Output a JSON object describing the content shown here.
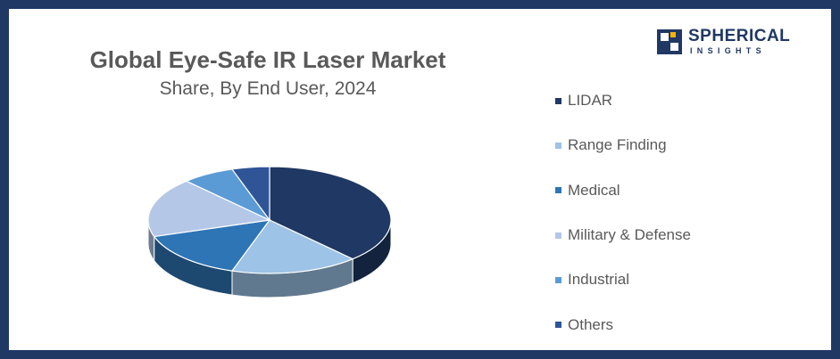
{
  "brand": {
    "name": "SPHERICAL",
    "tagline": "INSIGHTS",
    "colors": {
      "navy": "#1f3864",
      "accent": "#f6b400"
    }
  },
  "chart_data": {
    "type": "pie",
    "title": "Global Eye-Safe IR Laser Market",
    "subtitle": "Share, By End User, 2024",
    "legend_position": "right",
    "series": [
      {
        "name": "LIDAR",
        "value": 38,
        "color": "#1f3864"
      },
      {
        "name": "Range Finding",
        "value": 17,
        "color": "#9dc3e6"
      },
      {
        "name": "Medical",
        "value": 15,
        "color": "#2e75b6"
      },
      {
        "name": "Military & Defense",
        "value": 18,
        "color": "#b4c7e7"
      },
      {
        "name": "Industrial",
        "value": 7,
        "color": "#5b9bd5"
      },
      {
        "name": "Others",
        "value": 5,
        "color": "#2f5597"
      }
    ]
  }
}
